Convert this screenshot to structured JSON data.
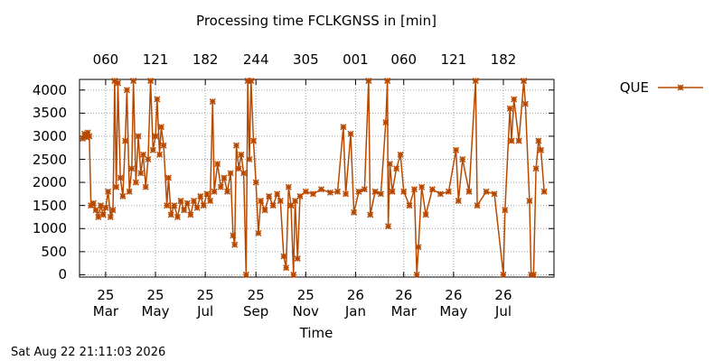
{
  "chart_data": {
    "type": "line",
    "title": "Processing time FCLKGNSS in [min]",
    "xlabel": "Time",
    "timestamp": "Sat Aug 22 21:11:03 2026",
    "legend": "outside-right",
    "grid": true,
    "xlim": [
      "2025-01-28",
      "2026-09-01"
    ],
    "xticks": [
      {
        "value": "2025-03-01",
        "label": "25\nMar"
      },
      {
        "value": "2025-05-01",
        "label": "25\nMay"
      },
      {
        "value": "2025-07-01",
        "label": "25\nJul"
      },
      {
        "value": "2025-09-01",
        "label": "25\nSep"
      },
      {
        "value": "2025-11-01",
        "label": "25\nNov"
      },
      {
        "value": "2026-01-01",
        "label": "26\nJan"
      },
      {
        "value": "2026-03-01",
        "label": "26\nMar"
      },
      {
        "value": "2026-05-01",
        "label": "26\nMay"
      },
      {
        "value": "2026-07-01",
        "label": "26\nJul"
      }
    ],
    "x2ticks": [
      {
        "value": "2025-03-01",
        "label": "060"
      },
      {
        "value": "2025-05-01",
        "label": "121"
      },
      {
        "value": "2025-07-01",
        "label": "182"
      },
      {
        "value": "2025-09-01",
        "label": "244"
      },
      {
        "value": "2025-11-01",
        "label": "305"
      },
      {
        "value": "2026-01-01",
        "label": "001"
      },
      {
        "value": "2026-03-01",
        "label": "060"
      },
      {
        "value": "2026-05-01",
        "label": "121"
      },
      {
        "value": "2026-07-01",
        "label": "182"
      }
    ],
    "ylim": [
      -50,
      4230
    ],
    "yticks": [
      0,
      500,
      1000,
      1500,
      2000,
      2500,
      3000,
      3500,
      4000
    ],
    "x": [
      "2025-02-01",
      "2025-02-03",
      "2025-02-05",
      "2025-02-07",
      "2025-02-09",
      "2025-02-11",
      "2025-02-14",
      "2025-02-17",
      "2025-02-20",
      "2025-02-23",
      "2025-02-26",
      "2025-03-01",
      "2025-03-04",
      "2025-03-07",
      "2025-03-10",
      "2025-03-12",
      "2025-03-14",
      "2025-03-16",
      "2025-03-19",
      "2025-03-22",
      "2025-03-25",
      "2025-03-27",
      "2025-03-30",
      "2025-04-02",
      "2025-04-04",
      "2025-04-07",
      "2025-04-10",
      "2025-04-13",
      "2025-04-16",
      "2025-04-19",
      "2025-04-22",
      "2025-04-25",
      "2025-04-28",
      "2025-05-01",
      "2025-05-03",
      "2025-05-06",
      "2025-05-08",
      "2025-05-11",
      "2025-05-15",
      "2025-05-17",
      "2025-05-20",
      "2025-05-24",
      "2025-05-28",
      "2025-06-01",
      "2025-06-05",
      "2025-06-09",
      "2025-06-13",
      "2025-06-17",
      "2025-06-21",
      "2025-06-25",
      "2025-06-29",
      "2025-07-03",
      "2025-07-07",
      "2025-07-10",
      "2025-07-12",
      "2025-07-16",
      "2025-07-20",
      "2025-07-24",
      "2025-07-28",
      "2025-08-01",
      "2025-08-04",
      "2025-08-06",
      "2025-08-08",
      "2025-08-11",
      "2025-08-14",
      "2025-08-17",
      "2025-08-20",
      "2025-08-22",
      "2025-08-24",
      "2025-08-26",
      "2025-08-29",
      "2025-09-01",
      "2025-09-04",
      "2025-09-07",
      "2025-09-12",
      "2025-09-17",
      "2025-09-22",
      "2025-09-27",
      "2025-10-01",
      "2025-10-05",
      "2025-10-08",
      "2025-10-11",
      "2025-10-14",
      "2025-10-17",
      "2025-10-19",
      "2025-10-22",
      "2025-10-25",
      "2025-11-01",
      "2025-11-10",
      "2025-11-20",
      "2025-12-01",
      "2025-12-10",
      "2025-12-17",
      "2025-12-20",
      "2025-12-26",
      "2025-12-30",
      "2026-01-05",
      "2026-01-12",
      "2026-01-17",
      "2026-01-19",
      "2026-01-25",
      "2026-02-01",
      "2026-02-07",
      "2026-02-09",
      "2026-02-10",
      "2026-02-12",
      "2026-02-15",
      "2026-02-20",
      "2026-02-25",
      "2026-03-01",
      "2026-03-08",
      "2026-03-14",
      "2026-03-17",
      "2026-03-19",
      "2026-03-23",
      "2026-03-28",
      "2026-04-05",
      "2026-04-15",
      "2026-04-25",
      "2026-05-04",
      "2026-05-07",
      "2026-05-12",
      "2026-05-20",
      "2026-05-28",
      "2026-05-30",
      "2026-06-10",
      "2026-06-20",
      "2026-07-01",
      "2026-07-03",
      "2026-07-09",
      "2026-07-11",
      "2026-07-14",
      "2026-07-20",
      "2026-07-26",
      "2026-07-28",
      "2026-08-02",
      "2026-08-04",
      "2026-08-07",
      "2026-08-10",
      "2026-08-13",
      "2026-08-16",
      "2026-08-20"
    ],
    "series": [
      {
        "name": "QUE",
        "color": "#b84a00",
        "values": [
          2950,
          3050,
          2980,
          3080,
          3000,
          1500,
          1550,
          1400,
          1250,
          1500,
          1300,
          1450,
          1800,
          1250,
          1400,
          4200,
          1900,
          4150,
          2100,
          1700,
          2900,
          4000,
          1800,
          2300,
          4200,
          2000,
          3000,
          2200,
          2600,
          1900,
          2500,
          4200,
          2700,
          3000,
          3800,
          2600,
          3200,
          2800,
          1500,
          2100,
          1300,
          1500,
          1250,
          1600,
          1400,
          1550,
          1300,
          1600,
          1450,
          1700,
          1500,
          1750,
          1600,
          3750,
          1800,
          2400,
          1900,
          2100,
          1800,
          2200,
          850,
          650,
          2800,
          2300,
          2600,
          2200,
          0,
          4200,
          2500,
          4200,
          2900,
          2000,
          900,
          1600,
          1400,
          1700,
          1500,
          1750,
          1600,
          400,
          150,
          1900,
          1500,
          0,
          1600,
          350,
          1700,
          1800,
          1750,
          1850,
          1780,
          1800,
          3200,
          1750,
          3050,
          1350,
          1800,
          1850,
          4200,
          1300,
          1800,
          1750,
          3300,
          4200,
          1050,
          2400,
          1800,
          2300,
          2600,
          1800,
          1500,
          1850,
          0,
          600,
          1900,
          1300,
          1850,
          1750,
          1800,
          2700,
          1600,
          2500,
          1800,
          4200,
          1500,
          1800,
          1750,
          0,
          1400,
          3600,
          2900,
          3800,
          2900,
          4200,
          3700,
          1600,
          0,
          0,
          2300,
          2900,
          2700,
          1800
        ]
      }
    ]
  }
}
